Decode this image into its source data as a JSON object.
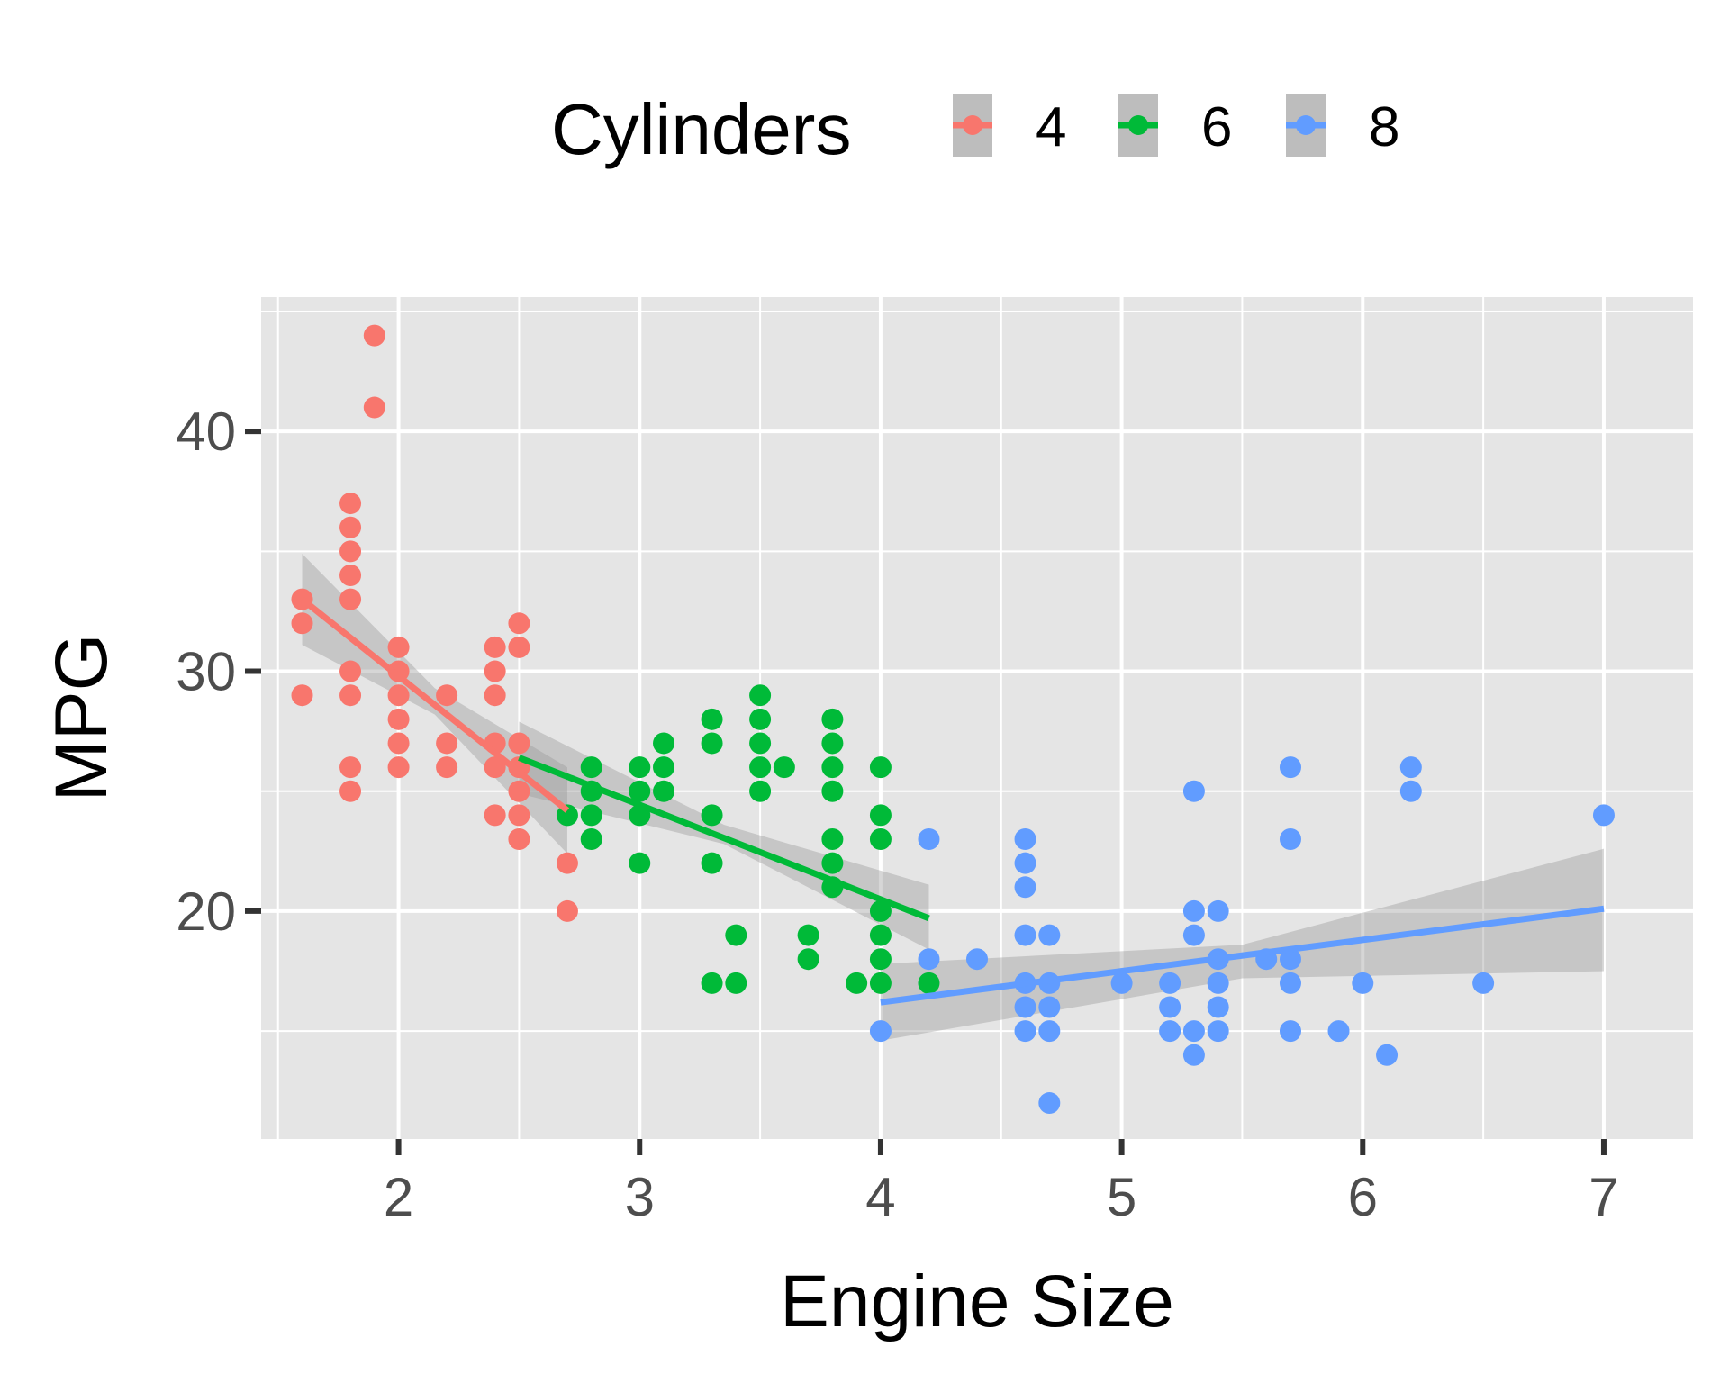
{
  "chart_data": {
    "type": "scatter",
    "title": "",
    "xlabel": "Engine Size",
    "ylabel": "MPG",
    "xlim": [
      1.43,
      7.37
    ],
    "ylim": [
      10.5,
      45.6
    ],
    "x_ticks": [
      2,
      3,
      4,
      5,
      6,
      7
    ],
    "y_ticks": [
      20,
      30,
      40
    ],
    "grid": true,
    "legend": {
      "title": "Cylinders",
      "placement": "top",
      "entries": [
        "4",
        "6",
        "8"
      ]
    },
    "series": [
      {
        "name": "4",
        "color": "#F8766D",
        "points": [
          [
            1.6,
            33
          ],
          [
            1.6,
            32
          ],
          [
            1.6,
            29
          ],
          [
            1.8,
            37
          ],
          [
            1.8,
            36
          ],
          [
            1.8,
            35
          ],
          [
            1.8,
            34
          ],
          [
            1.8,
            33
          ],
          [
            1.8,
            30
          ],
          [
            1.8,
            29
          ],
          [
            1.8,
            26
          ],
          [
            1.8,
            25
          ],
          [
            1.9,
            44
          ],
          [
            1.9,
            41
          ],
          [
            2.0,
            31
          ],
          [
            2.0,
            30
          ],
          [
            2.0,
            29
          ],
          [
            2.0,
            28
          ],
          [
            2.0,
            27
          ],
          [
            2.0,
            26
          ],
          [
            2.2,
            29
          ],
          [
            2.2,
            27
          ],
          [
            2.2,
            26
          ],
          [
            2.4,
            31
          ],
          [
            2.4,
            30
          ],
          [
            2.4,
            29
          ],
          [
            2.4,
            27
          ],
          [
            2.4,
            26
          ],
          [
            2.4,
            24
          ],
          [
            2.5,
            32
          ],
          [
            2.5,
            31
          ],
          [
            2.5,
            27
          ],
          [
            2.5,
            26
          ],
          [
            2.5,
            25
          ],
          [
            2.5,
            24
          ],
          [
            2.5,
            23
          ],
          [
            2.7,
            22
          ],
          [
            2.7,
            20
          ]
        ],
        "fit": [
          [
            1.6,
            33.0
          ],
          [
            2.7,
            24.2
          ]
        ],
        "band": {
          "x": [
            1.6,
            2.15,
            2.7
          ],
          "lower": [
            31.1,
            28.2,
            22.4
          ],
          "upper": [
            34.9,
            29.3,
            26.0
          ]
        }
      },
      {
        "name": "6",
        "color": "#00BA38",
        "points": [
          [
            2.7,
            24
          ],
          [
            2.8,
            26
          ],
          [
            2.8,
            25
          ],
          [
            2.8,
            24
          ],
          [
            2.8,
            23
          ],
          [
            3.0,
            26
          ],
          [
            3.0,
            25
          ],
          [
            3.0,
            24
          ],
          [
            3.0,
            22
          ],
          [
            3.1,
            27
          ],
          [
            3.1,
            26
          ],
          [
            3.1,
            25
          ],
          [
            3.3,
            28
          ],
          [
            3.3,
            27
          ],
          [
            3.3,
            24
          ],
          [
            3.3,
            22
          ],
          [
            3.3,
            17
          ],
          [
            3.4,
            19
          ],
          [
            3.4,
            17
          ],
          [
            3.5,
            29
          ],
          [
            3.5,
            28
          ],
          [
            3.5,
            27
          ],
          [
            3.5,
            26
          ],
          [
            3.5,
            25
          ],
          [
            3.6,
            26
          ],
          [
            3.7,
            19
          ],
          [
            3.7,
            18
          ],
          [
            3.8,
            28
          ],
          [
            3.8,
            27
          ],
          [
            3.8,
            26
          ],
          [
            3.8,
            25
          ],
          [
            3.8,
            23
          ],
          [
            3.8,
            22
          ],
          [
            3.8,
            21
          ],
          [
            3.9,
            17
          ],
          [
            4.0,
            26
          ],
          [
            4.0,
            24
          ],
          [
            4.0,
            23
          ],
          [
            4.0,
            20
          ],
          [
            4.0,
            19
          ],
          [
            4.0,
            18
          ],
          [
            4.0,
            17
          ],
          [
            4.2,
            17
          ]
        ],
        "fit": [
          [
            2.5,
            26.4
          ],
          [
            4.2,
            19.7
          ]
        ],
        "band": {
          "x": [
            2.5,
            3.35,
            4.2
          ],
          "lower": [
            24.9,
            22.8,
            18.4
          ],
          "upper": [
            27.9,
            23.6,
            21.1
          ]
        }
      },
      {
        "name": "8",
        "color": "#619CFF",
        "points": [
          [
            4.0,
            15
          ],
          [
            4.2,
            23
          ],
          [
            4.2,
            18
          ],
          [
            4.4,
            18
          ],
          [
            4.6,
            23
          ],
          [
            4.6,
            22
          ],
          [
            4.6,
            21
          ],
          [
            4.6,
            19
          ],
          [
            4.6,
            17
          ],
          [
            4.6,
            16
          ],
          [
            4.6,
            15
          ],
          [
            4.7,
            19
          ],
          [
            4.7,
            17
          ],
          [
            4.7,
            16
          ],
          [
            4.7,
            15
          ],
          [
            4.7,
            12
          ],
          [
            5.0,
            17
          ],
          [
            5.2,
            17
          ],
          [
            5.2,
            16
          ],
          [
            5.2,
            15
          ],
          [
            5.3,
            25
          ],
          [
            5.3,
            20
          ],
          [
            5.3,
            19
          ],
          [
            5.3,
            15
          ],
          [
            5.3,
            14
          ],
          [
            5.4,
            20
          ],
          [
            5.4,
            18
          ],
          [
            5.4,
            17
          ],
          [
            5.4,
            16
          ],
          [
            5.4,
            15
          ],
          [
            5.6,
            18
          ],
          [
            5.7,
            26
          ],
          [
            5.7,
            23
          ],
          [
            5.7,
            18
          ],
          [
            5.7,
            17
          ],
          [
            5.7,
            15
          ],
          [
            5.9,
            15
          ],
          [
            6.0,
            17
          ],
          [
            6.1,
            14
          ],
          [
            6.2,
            26
          ],
          [
            6.2,
            25
          ],
          [
            6.5,
            17
          ],
          [
            7.0,
            24
          ]
        ],
        "fit": [
          [
            4.0,
            16.2
          ],
          [
            7.0,
            20.1
          ]
        ],
        "band": {
          "x": [
            4.0,
            5.5,
            7.0
          ],
          "lower": [
            14.6,
            17.2,
            17.5
          ],
          "upper": [
            17.8,
            18.6,
            22.6
          ]
        }
      }
    ]
  }
}
